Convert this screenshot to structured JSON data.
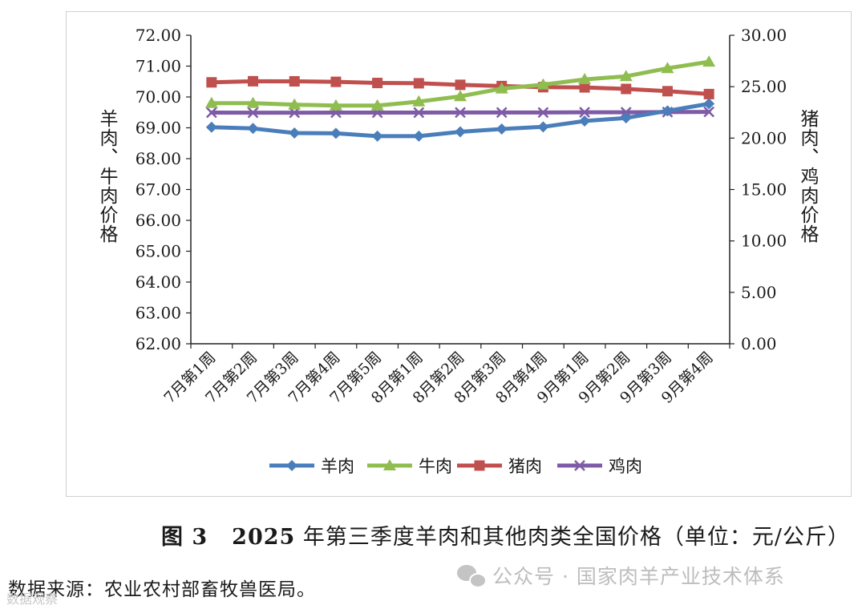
{
  "chart_data": {
    "type": "line",
    "categories": [
      "7月第1周",
      "7月第2周",
      "7月第3周",
      "7月第4周",
      "7月第5周",
      "8月第1周",
      "8月第2周",
      "8月第3周",
      "8月第4周",
      "9月第1周",
      "9月第2周",
      "9月第3周",
      "9月第4周"
    ],
    "left_axis": {
      "label": "羊肉、牛肉价格",
      "ylim": [
        62,
        72
      ],
      "ticks": [
        "62.00",
        "63.00",
        "64.00",
        "65.00",
        "66.00",
        "67.00",
        "68.00",
        "69.00",
        "70.00",
        "71.00",
        "72.00"
      ]
    },
    "right_axis": {
      "label": "猪肉、鸡肉价格",
      "ylim": [
        0,
        30
      ],
      "ticks": [
        "0.00",
        "5.00",
        "10.00",
        "15.00",
        "20.00",
        "25.00",
        "30.00"
      ]
    },
    "series": [
      {
        "name": "羊肉",
        "axis": "left",
        "color": "#4a7ebb",
        "marker": "diamond",
        "values": [
          69.02,
          68.98,
          68.83,
          68.82,
          68.73,
          68.73,
          68.87,
          68.96,
          69.03,
          69.22,
          69.32,
          69.55,
          69.78
        ]
      },
      {
        "name": "牛肉",
        "axis": "left",
        "color": "#8fbd50",
        "marker": "triangle",
        "values": [
          69.8,
          69.8,
          69.75,
          69.72,
          69.72,
          69.85,
          70.02,
          70.27,
          70.4,
          70.57,
          70.67,
          70.93,
          71.14
        ]
      },
      {
        "name": "猪肉",
        "axis": "right",
        "color": "#c0504d",
        "marker": "square",
        "values": [
          25.42,
          25.53,
          25.52,
          25.47,
          25.36,
          25.33,
          25.18,
          25.06,
          24.95,
          24.93,
          24.78,
          24.56,
          24.28
        ]
      },
      {
        "name": "鸡肉",
        "axis": "right",
        "color": "#7e5ba6",
        "marker": "cross",
        "values": [
          22.48,
          22.47,
          22.47,
          22.48,
          22.48,
          22.48,
          22.49,
          22.49,
          22.49,
          22.51,
          22.51,
          22.53,
          22.55
        ]
      }
    ]
  },
  "caption": {
    "figure_no": "图 3",
    "year": "2025",
    "text": " 年第三季度羊肉和其他肉类全国价格（单位：元/公斤）"
  },
  "source": "数据来源：农业农村部畜牧兽医局。",
  "watermark": "公众号 · 国家肉羊产业技术体系",
  "corner_watermark": "数据观察"
}
